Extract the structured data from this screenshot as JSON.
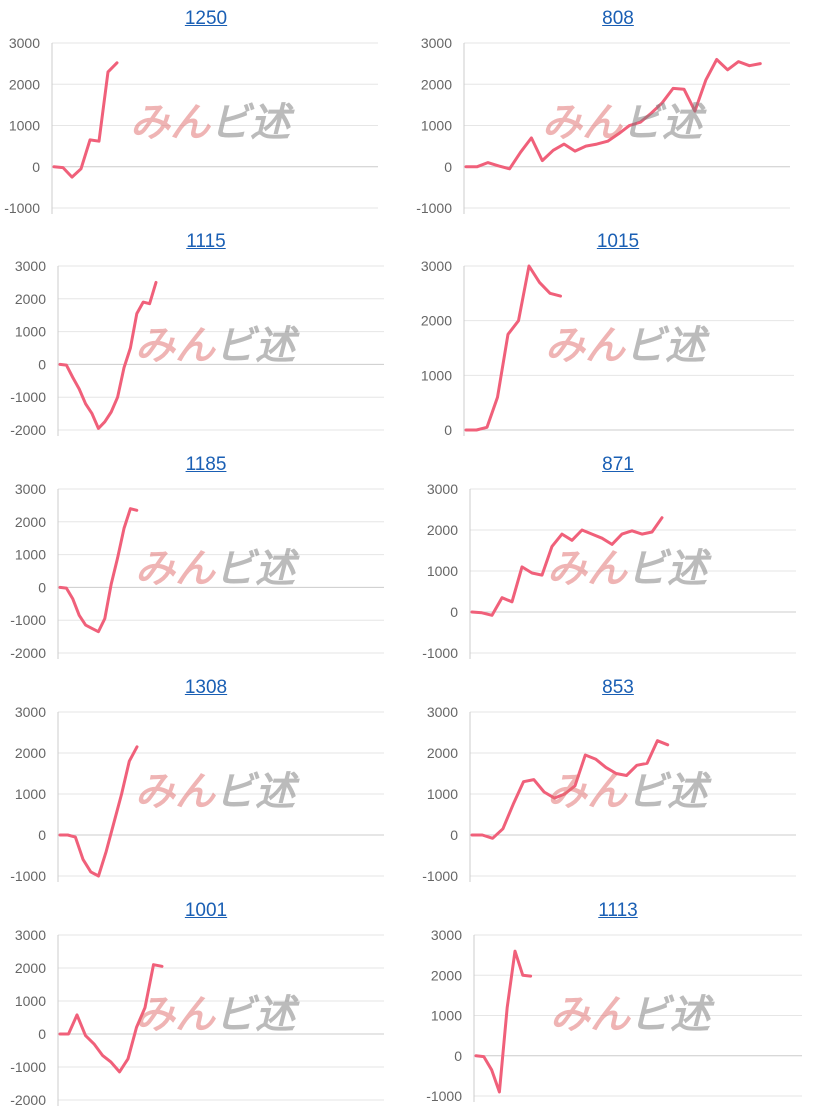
{
  "watermark": {
    "part1": "みん",
    "part2": "ビ述"
  },
  "colors": {
    "line": "#f0607a",
    "grid": "#e6e6e6",
    "axis": "#cccccc",
    "tick": "#666666",
    "title": "#1a5fb4"
  },
  "chart_data": [
    {
      "type": "line",
      "title": "1250",
      "yticks": [
        "3000",
        "2000",
        "1000",
        "0",
        "-1000"
      ],
      "ylim": [
        -1000,
        3000
      ],
      "values": [
        0,
        -20,
        -250,
        -50,
        650,
        620,
        2300,
        2520
      ]
    },
    {
      "type": "line",
      "title": "808",
      "yticks": [
        "3000",
        "2000",
        "1000",
        "0",
        "-1000"
      ],
      "ylim": [
        -1000,
        3000
      ],
      "values": [
        0,
        0,
        100,
        20,
        -50,
        350,
        700,
        150,
        400,
        550,
        380,
        500,
        550,
        620,
        800,
        1000,
        1080,
        1300,
        1550,
        1900,
        1880,
        1350,
        2100,
        2600,
        2350,
        2550,
        2450,
        2500
      ]
    },
    {
      "type": "line",
      "title": "1115",
      "yticks": [
        "3000",
        "2000",
        "1000",
        "0",
        "-1000",
        "-2000"
      ],
      "ylim": [
        -2000,
        3000
      ],
      "values": [
        0,
        -20,
        -400,
        -750,
        -1200,
        -1500,
        -1950,
        -1750,
        -1450,
        -1000,
        -100,
        500,
        1550,
        1900,
        1850,
        2500
      ]
    },
    {
      "type": "line",
      "title": "1015",
      "yticks": [
        "3000",
        "2000",
        "1000",
        "0"
      ],
      "ylim": [
        0,
        3000
      ],
      "values": [
        0,
        0,
        50,
        600,
        1750,
        2000,
        3000,
        2700,
        2500,
        2450
      ]
    },
    {
      "type": "line",
      "title": "1185",
      "yticks": [
        "3000",
        "2000",
        "1000",
        "0",
        "-1000",
        "-2000"
      ],
      "ylim": [
        -2000,
        3000
      ],
      "values": [
        0,
        -20,
        -350,
        -850,
        -1150,
        -1250,
        -1350,
        -950,
        100,
        900,
        1800,
        2400,
        2350
      ]
    },
    {
      "type": "line",
      "title": "871",
      "yticks": [
        "3000",
        "2000",
        "1000",
        "0",
        "-1000"
      ],
      "ylim": [
        -1000,
        3000
      ],
      "values": [
        0,
        -20,
        -80,
        350,
        250,
        1100,
        950,
        900,
        1600,
        1900,
        1750,
        2000,
        1900,
        1800,
        1650,
        1900,
        1980,
        1900,
        1950,
        2300
      ]
    },
    {
      "type": "line",
      "title": "1308",
      "yticks": [
        "3000",
        "2000",
        "1000",
        "0",
        "-1000"
      ],
      "ylim": [
        -1000,
        3000
      ],
      "values": [
        0,
        0,
        -50,
        -600,
        -900,
        -1000,
        -400,
        300,
        1000,
        1800,
        2150
      ]
    },
    {
      "type": "line",
      "title": "853",
      "yticks": [
        "3000",
        "2000",
        "1000",
        "0",
        "-1000"
      ],
      "ylim": [
        -1000,
        3000
      ],
      "values": [
        0,
        0,
        -80,
        150,
        750,
        1300,
        1350,
        1050,
        900,
        1000,
        1200,
        1950,
        1850,
        1650,
        1500,
        1450,
        1700,
        1750,
        2300,
        2200
      ]
    },
    {
      "type": "line",
      "title": "1001",
      "yticks": [
        "3000",
        "2000",
        "1000",
        "0",
        "-1000",
        "-2000"
      ],
      "ylim": [
        -2000,
        3000
      ],
      "values": [
        0,
        0,
        580,
        -50,
        -300,
        -650,
        -850,
        -1150,
        -750,
        200,
        800,
        2100,
        2050
      ]
    },
    {
      "type": "line",
      "title": "1113",
      "yticks": [
        "3000",
        "2000",
        "1000",
        "0",
        "-1000"
      ],
      "ylim": [
        -1000,
        3000
      ],
      "values": [
        0,
        -20,
        -350,
        -900,
        1200,
        2600,
        2000,
        1980
      ]
    }
  ]
}
